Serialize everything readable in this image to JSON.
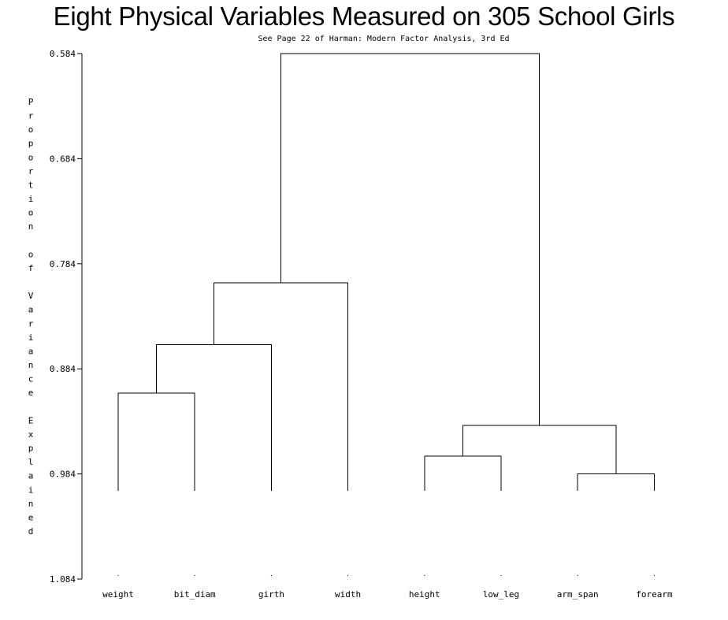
{
  "chart_data": {
    "type": "dendrogram",
    "title": "Eight Physical Variables Measured on 305 School Girls",
    "subtitle": "See Page 22 of Harman: Modern Factor Analysis, 3rd Ed",
    "ylabel": "Proportion of Variance Explained",
    "y_axis_direction": "reversed",
    "ylim": [
      0.584,
      1.084
    ],
    "yticks": [
      "0.584",
      "0.684",
      "0.784",
      "0.884",
      "0.984",
      "1.084"
    ],
    "grid": false,
    "leaves": [
      "weight",
      "bit_diam",
      "girth",
      "width",
      "height",
      "low_leg",
      "arm_span",
      "forearm"
    ],
    "leaf_height": 1.0,
    "merges": [
      {
        "left": "weight",
        "right": "bit_diam",
        "height": 0.907
      },
      {
        "left": "arm_span",
        "right": "forearm",
        "height": 0.984
      },
      {
        "left": "height",
        "right": "low_leg",
        "height": 0.967
      },
      {
        "left": "height+low_leg",
        "right": "arm_span+forearm",
        "height": 0.938
      },
      {
        "left": "weight+bit_diam",
        "right": "girth",
        "height": 0.861
      },
      {
        "left": "weight+bit_diam+girth",
        "right": "width",
        "height": 0.802
      },
      {
        "left": "weight+bit_diam+girth+width",
        "right": "height+low_leg+arm_span+forearm",
        "height": 0.584
      }
    ]
  }
}
